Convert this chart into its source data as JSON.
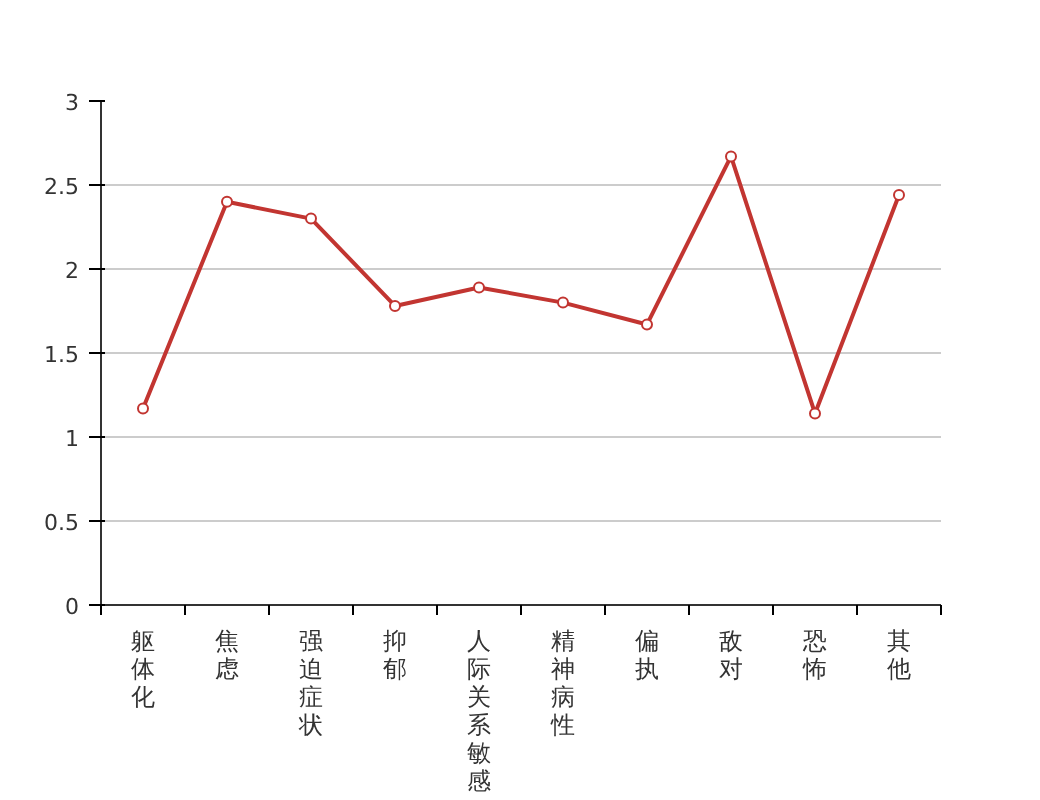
{
  "chart_data": {
    "type": "line",
    "categories": [
      "躯体化",
      "焦虑",
      "强迫症状",
      "抑郁",
      "人际关系敏感",
      "精神病性",
      "偏执",
      "敌对",
      "恐怖",
      "其他"
    ],
    "series": [
      {
        "color": "#c23531",
        "values": [
          1.17,
          2.4,
          2.3,
          1.78,
          1.89,
          1.8,
          1.67,
          2.67,
          1.14,
          2.44
        ]
      }
    ],
    "ylim": [
      0,
      3
    ],
    "yticks": [
      0,
      0.5,
      1,
      1.5,
      2,
      2.5,
      3
    ],
    "grid": "y",
    "marker": "circle",
    "line_style": "solid"
  }
}
